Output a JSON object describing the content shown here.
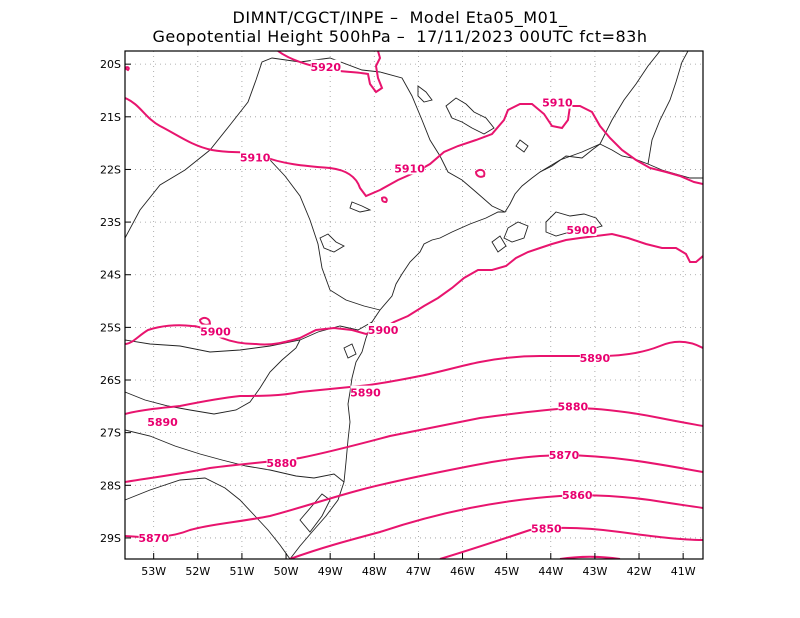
{
  "title_line1": "DIMNT/CGCT/INPE –  Model Eta05_M01_",
  "title_line2": "Geopotential Height 500hPa –  17/11/2023 00UTC fct=83h",
  "colors": {
    "contour": "#e8146e",
    "label": "#e8006f",
    "frame": "#000000",
    "grid": "#999999",
    "coast": "#222222"
  },
  "lat_labels": [
    "20S",
    "21S",
    "22S",
    "23S",
    "24S",
    "25S",
    "26S",
    "27S",
    "28S",
    "29S"
  ],
  "lon_labels": [
    "53W",
    "52W",
    "51W",
    "50W",
    "49W",
    "48W",
    "47W",
    "46W",
    "45W",
    "44W",
    "43W",
    "42W",
    "41W"
  ],
  "contour_labels": [
    {
      "text": "5920",
      "lon": -49.1,
      "lat": -20.05
    },
    {
      "text": "5910",
      "lon": -50.7,
      "lat": -21.77
    },
    {
      "text": "5910",
      "lon": -47.2,
      "lat": -21.98
    },
    {
      "text": "5910",
      "lon": -43.85,
      "lat": -20.73
    },
    {
      "text": "5900",
      "lon": -43.3,
      "lat": -23.15
    },
    {
      "text": "5900",
      "lon": -51.6,
      "lat": -25.08
    },
    {
      "text": "5900",
      "lon": -47.8,
      "lat": -25.05
    },
    {
      "text": "5890",
      "lon": -43.0,
      "lat": -25.58
    },
    {
      "text": "5890",
      "lon": -48.2,
      "lat": -26.24
    },
    {
      "text": "5890",
      "lon": -52.8,
      "lat": -26.8
    },
    {
      "text": "5880",
      "lon": -43.5,
      "lat": -26.5
    },
    {
      "text": "5880",
      "lon": -50.1,
      "lat": -27.58
    },
    {
      "text": "5870",
      "lon": -43.7,
      "lat": -27.42
    },
    {
      "text": "5870",
      "lon": -53.0,
      "lat": -29.0
    },
    {
      "text": "5860",
      "lon": -43.4,
      "lat": -28.18
    },
    {
      "text": "5850",
      "lon": -44.1,
      "lat": -28.82
    }
  ]
}
